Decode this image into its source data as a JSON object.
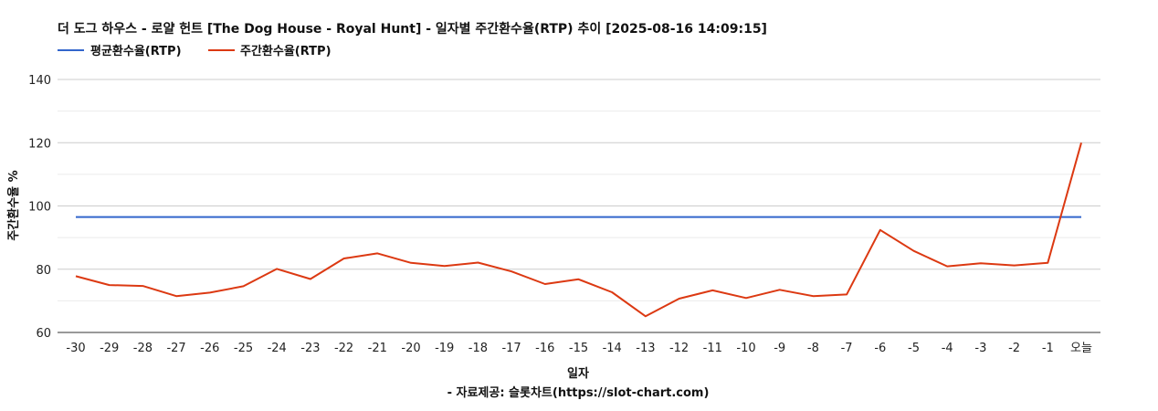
{
  "chart_data": {
    "type": "line",
    "title": "더 도그 하우스 - 로얄 헌트 [The Dog House - Royal Hunt] - 일자별 주간환수율(RTP) 추이 [2025-08-16 14:09:15]",
    "xlabel": "일자",
    "ylabel": "주간환수율 %",
    "source": "- 자료제공: 슬롯차트(https://slot-chart.com)",
    "ylim": [
      60,
      140
    ],
    "yticks": [
      60,
      80,
      100,
      120,
      140
    ],
    "grid": true,
    "legend_position": "top-left",
    "x": [
      "-30",
      "-29",
      "-28",
      "-27",
      "-26",
      "-25",
      "-24",
      "-23",
      "-22",
      "-21",
      "-20",
      "-19",
      "-18",
      "-17",
      "-16",
      "-15",
      "-14",
      "-13",
      "-12",
      "-11",
      "-10",
      "-9",
      "-8",
      "-7",
      "-6",
      "-5",
      "-4",
      "-3",
      "-2",
      "-1",
      "오늘"
    ],
    "series": [
      {
        "name": "평균환수율(RTP)",
        "color": "#3366cc",
        "values": [
          96.5,
          96.5,
          96.5,
          96.5,
          96.5,
          96.5,
          96.5,
          96.5,
          96.5,
          96.5,
          96.5,
          96.5,
          96.5,
          96.5,
          96.5,
          96.5,
          96.5,
          96.5,
          96.5,
          96.5,
          96.5,
          96.5,
          96.5,
          96.5,
          96.5,
          96.5,
          96.5,
          96.5,
          96.5,
          96.5,
          96.5
        ]
      },
      {
        "name": "주간환수율(RTP)",
        "color": "#dc3912",
        "values": [
          77.8,
          75.0,
          74.7,
          71.5,
          72.6,
          74.6,
          80.1,
          76.9,
          83.4,
          85.0,
          82.0,
          81.0,
          82.1,
          79.3,
          75.3,
          76.8,
          72.7,
          65.1,
          70.7,
          73.3,
          70.9,
          73.5,
          71.5,
          72.0,
          92.4,
          85.8,
          80.9,
          81.9,
          81.2,
          82.0,
          120.0
        ]
      }
    ]
  }
}
